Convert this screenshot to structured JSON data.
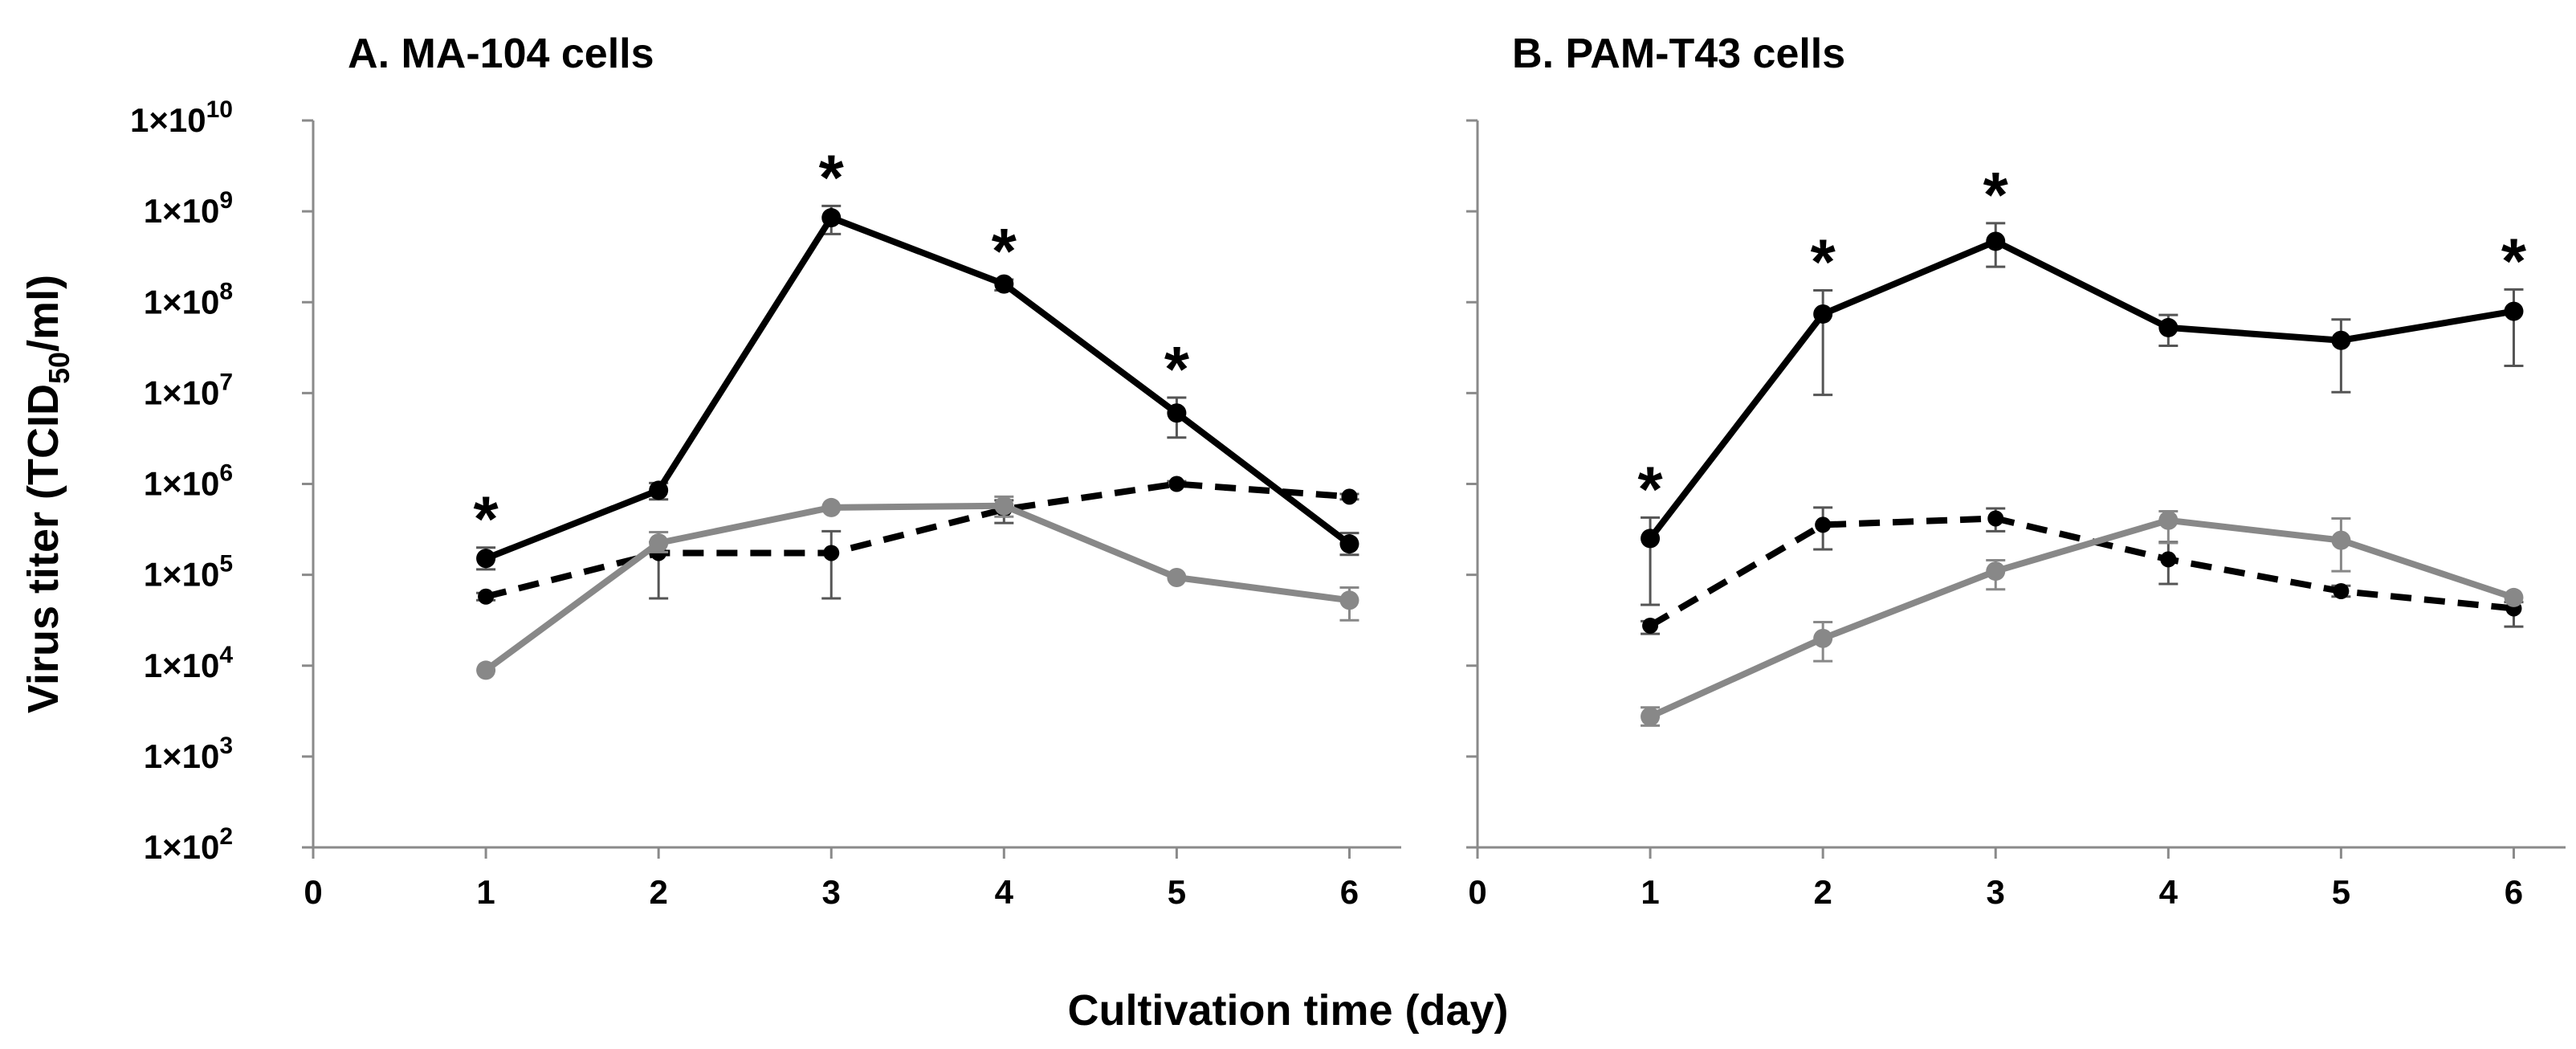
{
  "chart_data": {
    "type": "line",
    "shared": {
      "ylabel_main": "Virus titer (TCID",
      "ylabel_sub": "50",
      "ylabel_end": "/ml)",
      "xlabel": "Cultivation time (day)",
      "x_ticks": [
        "0",
        "1",
        "2",
        "3",
        "4",
        "5",
        "6"
      ],
      "y_ticks": [
        {
          "base": "1×10",
          "exp": "2",
          "log": 2
        },
        {
          "base": "1×10",
          "exp": "3",
          "log": 3
        },
        {
          "base": "1×10",
          "exp": "4",
          "log": 4
        },
        {
          "base": "1×10",
          "exp": "5",
          "log": 5
        },
        {
          "base": "1×10",
          "exp": "6",
          "log": 6
        },
        {
          "base": "1×10",
          "exp": "7",
          "log": 7
        },
        {
          "base": "1×10",
          "exp": "8",
          "log": 8
        },
        {
          "base": "1×10",
          "exp": "9",
          "log": 9
        },
        {
          "base": "1×10",
          "exp": "10",
          "log": 10
        }
      ],
      "xlim": [
        0,
        6.3
      ],
      "ylim_log10": [
        2,
        10
      ],
      "y_scale": "log10"
    },
    "panels": [
      {
        "title": "A. MA-104 cells",
        "series": [
          {
            "name": "black solid",
            "style": "solid",
            "color": "#000000",
            "x": [
              1,
              2,
              3,
              4,
              5,
              6
            ],
            "log10_values": [
              5.18,
              5.93,
              8.93,
              8.2,
              6.78,
              5.34
            ],
            "err_up": [
              0.12,
              0.08,
              0.13,
              0.05,
              0.17,
              0.12
            ],
            "err_down": [
              0.12,
              0.1,
              0.18,
              0.07,
              0.27,
              0.12
            ]
          },
          {
            "name": "black dashed",
            "style": "dashed",
            "color": "#000000",
            "x": [
              1,
              2,
              3,
              4,
              5,
              6
            ],
            "log10_values": [
              4.76,
              5.24,
              5.24,
              5.72,
              6.0,
              5.86
            ],
            "err_up": [
              0.04,
              0.12,
              0.24,
              0.1,
              0.03,
              0.03
            ],
            "err_down": [
              0.04,
              0.5,
              0.5,
              0.15,
              0.03,
              0.03
            ]
          },
          {
            "name": "gray solid",
            "style": "solid",
            "color": "#888888",
            "x": [
              1,
              2,
              3,
              4,
              5,
              6
            ],
            "log10_values": [
              3.95,
              5.35,
              5.74,
              5.76,
              4.97,
              4.72
            ],
            "err_up": [
              0.0,
              0.12,
              0.0,
              0.1,
              0.0,
              0.14
            ],
            "err_down": [
              0.0,
              0.1,
              0.0,
              0.12,
              0.0,
              0.22
            ]
          }
        ],
        "asterisks_x": [
          1,
          3,
          4,
          5
        ]
      },
      {
        "title": "B. PAM-T43 cells",
        "series": [
          {
            "name": "black solid",
            "style": "solid",
            "color": "#000000",
            "x": [
              1,
              2,
              3,
              4,
              5,
              6
            ],
            "log10_values": [
              5.4,
              7.87,
              8.67,
              7.72,
              7.58,
              7.9
            ],
            "err_up": [
              0.23,
              0.26,
              0.2,
              0.14,
              0.23,
              0.24
            ],
            "err_down": [
              0.73,
              0.89,
              0.28,
              0.2,
              0.57,
              0.6
            ]
          },
          {
            "name": "black dashed",
            "style": "dashed",
            "color": "#000000",
            "x": [
              1,
              2,
              3,
              4,
              5,
              6
            ],
            "log10_values": [
              4.44,
              5.55,
              5.62,
              5.17,
              4.82,
              4.63
            ],
            "err_up": [
              0.05,
              0.19,
              0.11,
              0.19,
              0.06,
              0.07
            ],
            "err_down": [
              0.09,
              0.27,
              0.14,
              0.27,
              0.06,
              0.2
            ]
          },
          {
            "name": "gray solid",
            "style": "solid",
            "color": "#888888",
            "x": [
              1,
              2,
              3,
              4,
              5,
              6
            ],
            "log10_values": [
              3.44,
              4.3,
              5.04,
              5.6,
              5.38,
              4.75
            ],
            "err_up": [
              0.1,
              0.18,
              0.12,
              0.1,
              0.24,
              0.0
            ],
            "err_down": [
              0.1,
              0.25,
              0.2,
              0.25,
              0.34,
              0.0
            ]
          }
        ],
        "asterisks_x": [
          1,
          2,
          3,
          6
        ]
      }
    ],
    "asterisk_char": "*"
  }
}
